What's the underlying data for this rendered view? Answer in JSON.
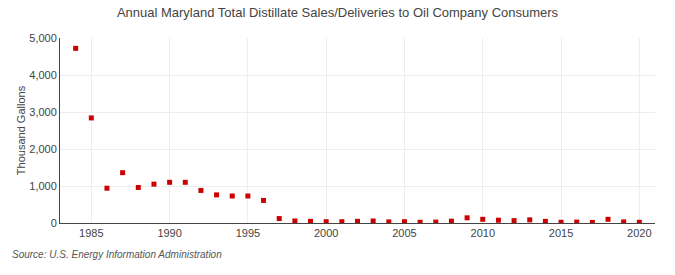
{
  "chart_data": {
    "type": "scatter",
    "title": "Annual Maryland Total Distillate Sales/Deliveries to Oil Company Consumers",
    "ylabel": "Thousand Gallons",
    "source": "Source: U.S. Energy Information Administration",
    "color": "#cc0000",
    "marker": "square",
    "grid": true,
    "xlim": [
      1983,
      2021
    ],
    "ylim": [
      0,
      5000
    ],
    "xticks": [
      1985,
      1990,
      1995,
      2000,
      2005,
      2010,
      2015,
      2020
    ],
    "yticks": [
      0,
      {
        "value": 1000,
        "label": "1,000"
      },
      {
        "value": 2000,
        "label": "2,000"
      },
      {
        "value": 3000,
        "label": "3,000"
      },
      {
        "value": 4000,
        "label": "4,000"
      },
      {
        "value": 5000,
        "label": "5,000"
      }
    ],
    "x": [
      1984,
      1985,
      1986,
      1987,
      1988,
      1989,
      1990,
      1991,
      1992,
      1993,
      1994,
      1995,
      1996,
      1997,
      1998,
      1999,
      2000,
      2001,
      2002,
      2003,
      2004,
      2005,
      2006,
      2007,
      2008,
      2009,
      2010,
      2011,
      2012,
      2013,
      2014,
      2015,
      2016,
      2017,
      2018,
      2019,
      2020
    ],
    "values": [
      4720,
      2840,
      940,
      1360,
      960,
      1050,
      1100,
      1100,
      880,
      760,
      730,
      730,
      610,
      120,
      55,
      45,
      35,
      35,
      45,
      55,
      30,
      35,
      20,
      25,
      50,
      140,
      100,
      75,
      65,
      85,
      45,
      20,
      25,
      15,
      100,
      30,
      20
    ]
  }
}
